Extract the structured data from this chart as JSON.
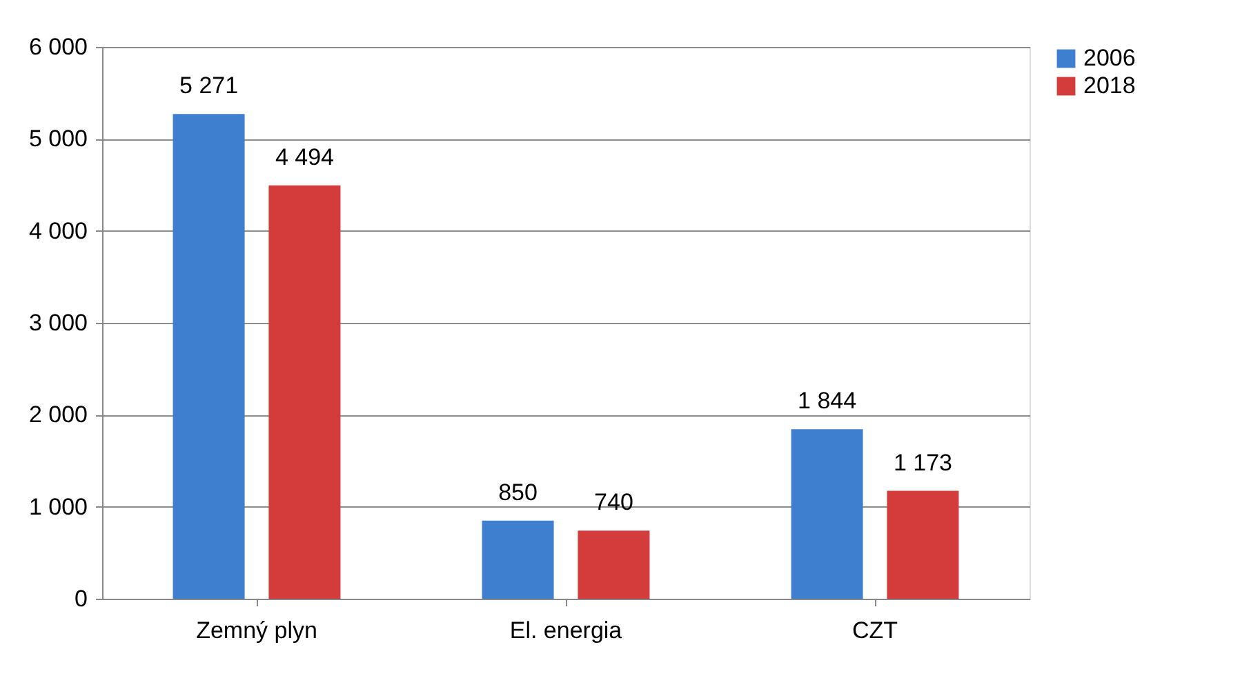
{
  "chart_data": {
    "type": "bar",
    "categories": [
      "Zemný plyn",
      "El. energia",
      "CZT"
    ],
    "series": [
      {
        "name": "2006",
        "color": "#3f7fd0",
        "values": [
          5271,
          850,
          1844
        ],
        "value_labels": [
          "5 271",
          "850",
          "1 844"
        ]
      },
      {
        "name": "2018",
        "color": "#d43c3c",
        "values": [
          4494,
          740,
          1173
        ],
        "value_labels": [
          "4 494",
          "740",
          "1 173"
        ]
      }
    ],
    "ylim": [
      0,
      6000
    ],
    "yticks": [
      {
        "value": 0,
        "label": "0"
      },
      {
        "value": 1000,
        "label": "1 000"
      },
      {
        "value": 2000,
        "label": "2 000"
      },
      {
        "value": 3000,
        "label": "3 000"
      },
      {
        "value": 4000,
        "label": "4 000"
      },
      {
        "value": 5000,
        "label": "5 000"
      },
      {
        "value": 6000,
        "label": "6 000"
      }
    ],
    "grid": "y",
    "legend": "right"
  }
}
